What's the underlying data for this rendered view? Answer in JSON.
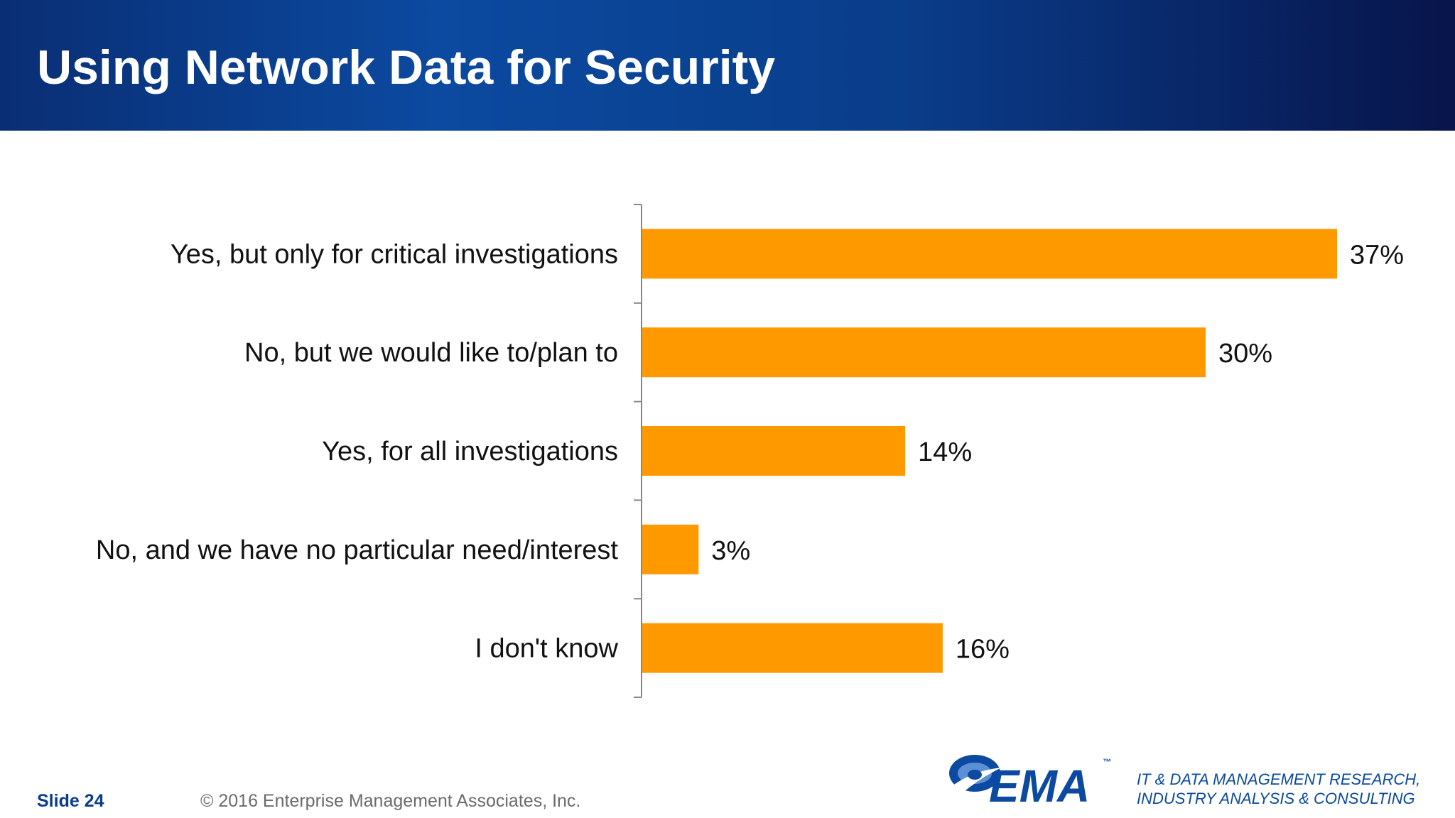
{
  "header": {
    "title": "Using Network Data for Security"
  },
  "chart_data": {
    "type": "bar",
    "orientation": "horizontal",
    "categories": [
      "Yes, but only for critical investigations",
      "No, but we would like to/plan to",
      "Yes, for all investigations",
      "No, and we have no particular need/interest",
      "I don't know"
    ],
    "values": [
      37,
      30,
      14,
      3,
      16
    ],
    "value_labels": [
      "37%",
      "30%",
      "14%",
      "3%",
      "16%"
    ],
    "unit": "%",
    "xlim": [
      0,
      37
    ],
    "bar_color": "#ff9900",
    "grid": false,
    "legend": "none"
  },
  "footer": {
    "slide_label": "Slide 24",
    "copyright": "© 2016 Enterprise Management Associates, Inc.",
    "logo_text": "EMA",
    "logo_tm": "™",
    "tagline_line1": "IT & DATA MANAGEMENT RESEARCH,",
    "tagline_line2": "INDUSTRY ANALYSIS & CONSULTING"
  },
  "colors": {
    "accent": "#0b4aa0",
    "bar": "#ff9900"
  }
}
